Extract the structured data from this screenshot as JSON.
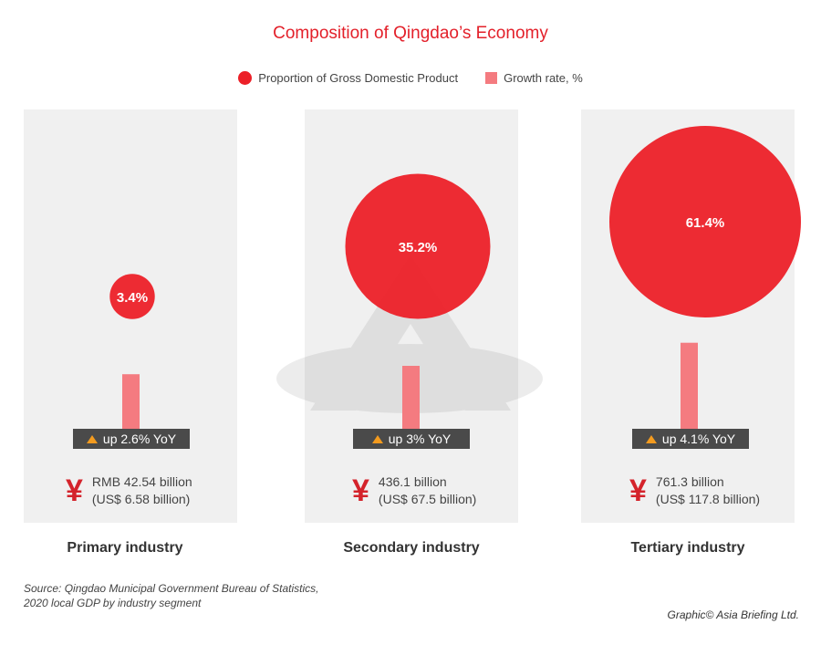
{
  "chart_data": {
    "type": "bubble-bar",
    "title": "Composition of Qingdao’s Economy",
    "legend": [
      {
        "name": "Proportion of Gross Domestic Product",
        "color": "#ec2028",
        "shape": "circle"
      },
      {
        "name": "Growth rate, %",
        "color": "#f47b80",
        "shape": "square"
      }
    ],
    "legend_placement": "top",
    "categories": [
      "Primary industry",
      "Secondary industry",
      "Tertiary industry"
    ],
    "gdp_share": [
      3.4,
      35.2,
      61.4
    ],
    "gdp_share_labels": [
      "3.4%",
      "35.2%",
      "61.4%"
    ],
    "growth": [
      2.6,
      3,
      4.1
    ],
    "growth_labels": [
      "up 2.6% YoY",
      "up 3% YoY",
      "up 4.1% YoY"
    ],
    "value_lines": [
      [
        "RMB 42.54 billion",
        "(US$ 6.58 billion)"
      ],
      [
        "436.1 billion",
        "(US$ 67.5 billion)"
      ],
      [
        "761.3 billion",
        "(US$ 117.8 billion)"
      ]
    ]
  },
  "colors": {
    "accent": "#e3202a",
    "bubble": "#ec2028",
    "bar": "#f47b80",
    "badge": "#4a4a4a",
    "arrow": "#f39b1f"
  },
  "source": [
    "Source: Qingdao Municipal Government Bureau of Statistics,",
    "2020 local GDP by industry segment"
  ],
  "credit": "Graphic© Asia Briefing Ltd."
}
